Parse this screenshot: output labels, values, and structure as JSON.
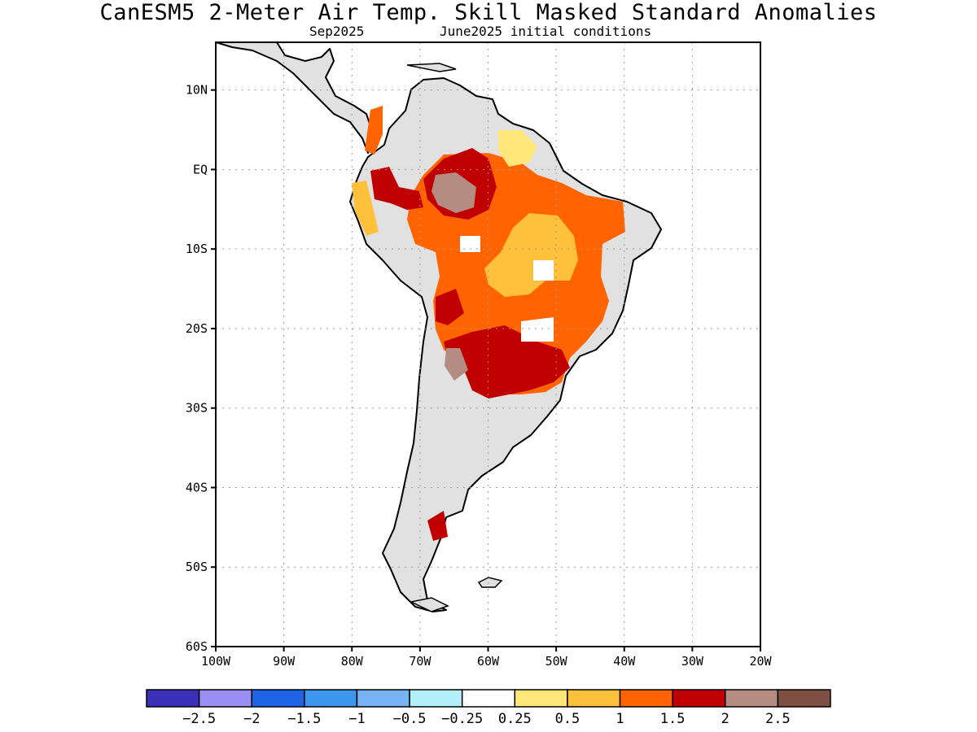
{
  "title": "CanESM5 2-Meter Air Temp. Skill Masked Standard Anomalies",
  "subtitle_left": "Sep2025",
  "subtitle_right": "June2025 initial conditions",
  "map": {
    "lon_range": [
      -100,
      -20
    ],
    "lat_range": [
      -60,
      16
    ],
    "lat_ticks": [
      {
        "value": 10,
        "label": "10N"
      },
      {
        "value": 0,
        "label": "EQ"
      },
      {
        "value": -10,
        "label": "10S"
      },
      {
        "value": -20,
        "label": "20S"
      },
      {
        "value": -30,
        "label": "30S"
      },
      {
        "value": -40,
        "label": "40S"
      },
      {
        "value": -50,
        "label": "50S"
      },
      {
        "value": -60,
        "label": "60S"
      }
    ],
    "lon_ticks": [
      {
        "value": -100,
        "label": "100W"
      },
      {
        "value": -90,
        "label": "90W"
      },
      {
        "value": -80,
        "label": "80W"
      },
      {
        "value": -70,
        "label": "70W"
      },
      {
        "value": -60,
        "label": "60W"
      },
      {
        "value": -50,
        "label": "50W"
      },
      {
        "value": -40,
        "label": "40W"
      },
      {
        "value": -30,
        "label": "30W"
      },
      {
        "value": -20,
        "label": "20W"
      }
    ],
    "masked_color": "#e1e1e1",
    "coast_color": "#000000"
  },
  "colorbar": {
    "colors": [
      "#3c2fb8",
      "#9b8ff5",
      "#1e64e6",
      "#3c96f0",
      "#78b4f5",
      "#b4f0fa",
      "#ffffff",
      "#ffe678",
      "#ffc03c",
      "#ff6400",
      "#c00000",
      "#b48c82",
      "#7d5043"
    ],
    "labels": [
      "-2.5",
      "-2",
      "-1.5",
      "-1",
      "-0.5",
      "-0.25",
      "0.25",
      "0.5",
      "1",
      "1.5",
      "2",
      "2.5"
    ]
  },
  "anomaly_regions": [
    {
      "level": "1.5",
      "color": "#ff6400",
      "desc": "central and southern Brazil"
    },
    {
      "level": "1",
      "color": "#ffc03c",
      "desc": "central Brazil"
    },
    {
      "level": "2",
      "color": "#c00000",
      "desc": "Paraguay and southern Brazil"
    },
    {
      "level": "2.5",
      "color": "#b48c82",
      "desc": "western Amazon"
    },
    {
      "level": "0.5",
      "color": "#ffe678",
      "desc": "Guianas coast"
    }
  ]
}
